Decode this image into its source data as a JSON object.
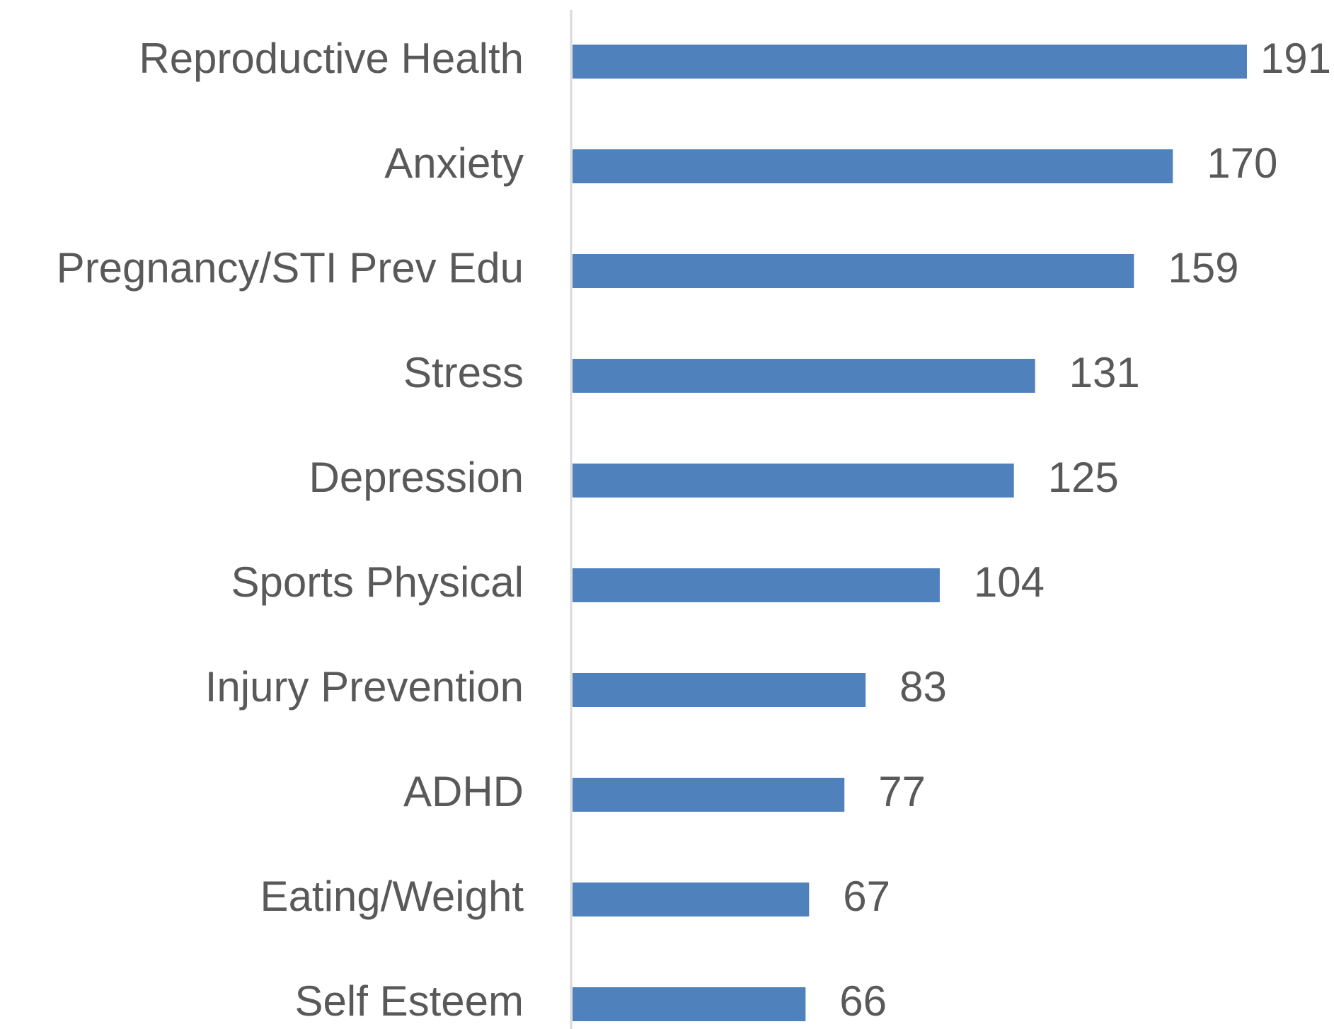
{
  "chart_data": {
    "type": "bar",
    "orientation": "horizontal",
    "categories": [
      "Reproductive Health",
      "Anxiety",
      "Pregnancy/STI Prev Edu",
      "Stress",
      "Depression",
      "Sports Physical",
      "Injury Prevention",
      "ADHD",
      "Eating/Weight",
      "Self Esteem"
    ],
    "values": [
      191,
      170,
      159,
      131,
      125,
      104,
      83,
      77,
      67,
      66
    ],
    "color": "#4f81bd"
  }
}
